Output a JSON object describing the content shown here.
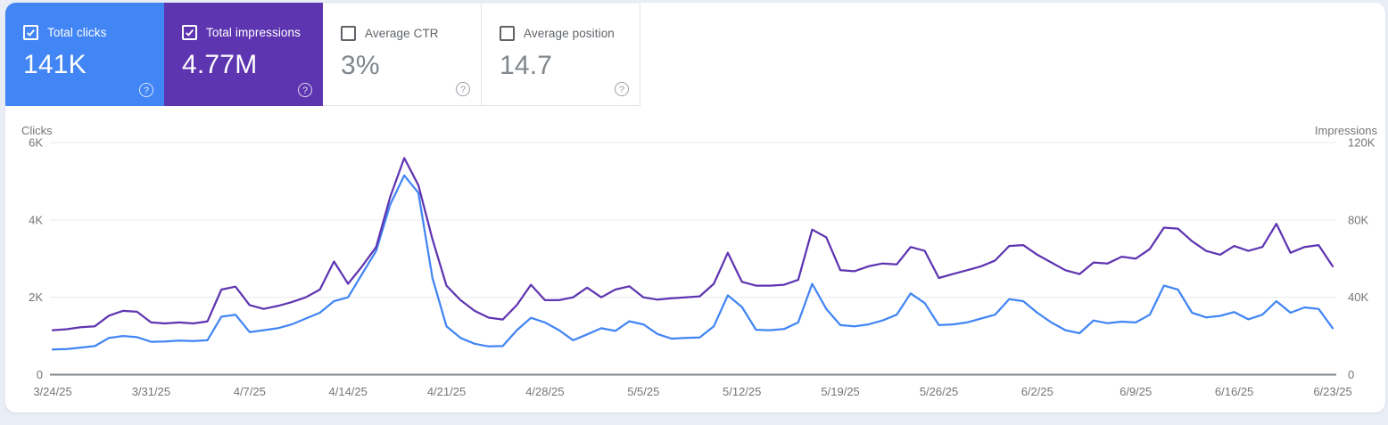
{
  "cards": [
    {
      "label": "Total clicks",
      "value": "141K",
      "checked": true,
      "bg": "#4285f4"
    },
    {
      "label": "Total impressions",
      "value": "4.77M",
      "checked": true,
      "bg": "#5e35b1"
    },
    {
      "label": "Average CTR",
      "value": "3%",
      "checked": false,
      "bg": "#ffffff"
    },
    {
      "label": "Average position",
      "value": "14.7",
      "checked": false,
      "bg": "#ffffff"
    }
  ],
  "icons": {
    "help": "?"
  },
  "chart_data": {
    "type": "line",
    "title": "",
    "grid": true,
    "legend": "none",
    "x_tick_labels": [
      "3/24/25",
      "3/31/25",
      "4/7/25",
      "4/14/25",
      "4/21/25",
      "4/28/25",
      "5/5/25",
      "5/12/25",
      "5/19/25",
      "5/26/25",
      "6/2/25",
      "6/9/25",
      "6/16/25",
      "6/23/25"
    ],
    "x_tick_every": 7,
    "left_axis": {
      "title": "Clicks",
      "max": 6000,
      "ticks": [
        "0",
        "2K",
        "4K",
        "6K"
      ]
    },
    "right_axis": {
      "title": "Impressions",
      "max": 120000,
      "ticks": [
        "0",
        "40K",
        "80K",
        "120K"
      ]
    },
    "series": [
      {
        "name": "Clicks",
        "axis": "left",
        "color": "#4285f4",
        "values": [
          650,
          660,
          700,
          740,
          950,
          1000,
          970,
          850,
          860,
          880,
          870,
          890,
          1500,
          1550,
          1100,
          1150,
          1200,
          1300,
          1450,
          1600,
          1900,
          2000,
          2600,
          3200,
          4400,
          5150,
          4700,
          2500,
          1250,
          950,
          800,
          730,
          740,
          1150,
          1470,
          1350,
          1150,
          890,
          1040,
          1200,
          1130,
          1380,
          1300,
          1050,
          930,
          950,
          960,
          1250,
          2050,
          1750,
          1160,
          1150,
          1180,
          1350,
          2350,
          1700,
          1280,
          1250,
          1300,
          1400,
          1550,
          2100,
          1850,
          1280,
          1300,
          1350,
          1450,
          1550,
          1950,
          1900,
          1600,
          1350,
          1150,
          1070,
          1400,
          1330,
          1370,
          1350,
          1550,
          2300,
          2200,
          1600,
          1480,
          1520,
          1620,
          1430,
          1550,
          1900,
          1600,
          1740,
          1700,
          1200
        ]
      },
      {
        "name": "Impressions",
        "axis": "right",
        "color": "#5e35b1",
        "values": [
          23000,
          23500,
          24500,
          25000,
          30500,
          33000,
          32500,
          27000,
          26500,
          27000,
          26500,
          27500,
          44000,
          45500,
          36000,
          34000,
          35500,
          37500,
          40000,
          44000,
          58500,
          47000,
          56000,
          66000,
          92000,
          112000,
          98000,
          70000,
          46000,
          38500,
          33000,
          29500,
          28500,
          36000,
          46500,
          38500,
          38500,
          40000,
          45000,
          40000,
          44000,
          45700,
          40000,
          38800,
          39500,
          40000,
          40500,
          47000,
          63000,
          48000,
          46000,
          46000,
          46500,
          49000,
          75000,
          71000,
          54000,
          53500,
          56000,
          57500,
          57000,
          66000,
          64000,
          50000,
          52000,
          54000,
          56000,
          59000,
          66500,
          67000,
          62000,
          58000,
          54000,
          52000,
          58000,
          57500,
          61000,
          60000,
          65000,
          76000,
          75500,
          69000,
          64000,
          62000,
          66500,
          64000,
          66000,
          78000,
          63000,
          66000,
          67000,
          56000
        ]
      }
    ]
  }
}
